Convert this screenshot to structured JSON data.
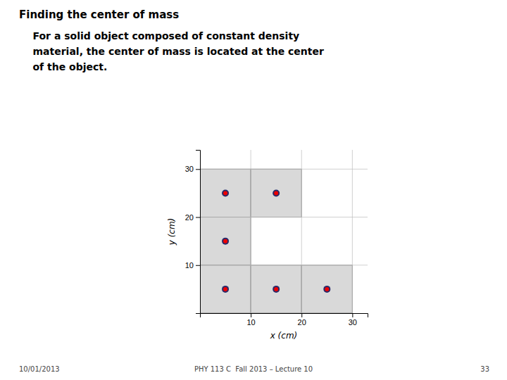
{
  "chart_data": {
    "type": "scatter",
    "title": "Finding the center of mass",
    "subtitle": [
      "    For a solid object composed of constant density",
      "    material, the center of mass is located at the center",
      "    of the object."
    ],
    "annotations": [
      "10/01/2013",
      "PHY 113 C  Fall 2013 – Lecture 10",
      "33"
    ],
    "x_label": "x (cm)",
    "y_label": "y (cm)",
    "x": [
      5,
      15,
      5,
      5,
      15,
      25
    ],
    "values": [
      25,
      25,
      15,
      5,
      5,
      5
    ],
    "color": "#ee0000",
    "squares": [
      [
        0,
        20,
        10,
        10
      ],
      [
        10,
        20,
        10,
        10
      ],
      [
        0,
        10,
        10,
        10
      ],
      [
        0,
        0,
        10,
        10
      ],
      [
        10,
        0,
        10,
        10
      ],
      [
        20,
        0,
        10,
        10
      ]
    ],
    "xlim": [
      0,
      33
    ],
    "ylim": [
      0,
      34
    ],
    "xticks": [
      10,
      20,
      30
    ],
    "yticks": [
      10,
      20,
      30
    ],
    "grid": true
  }
}
